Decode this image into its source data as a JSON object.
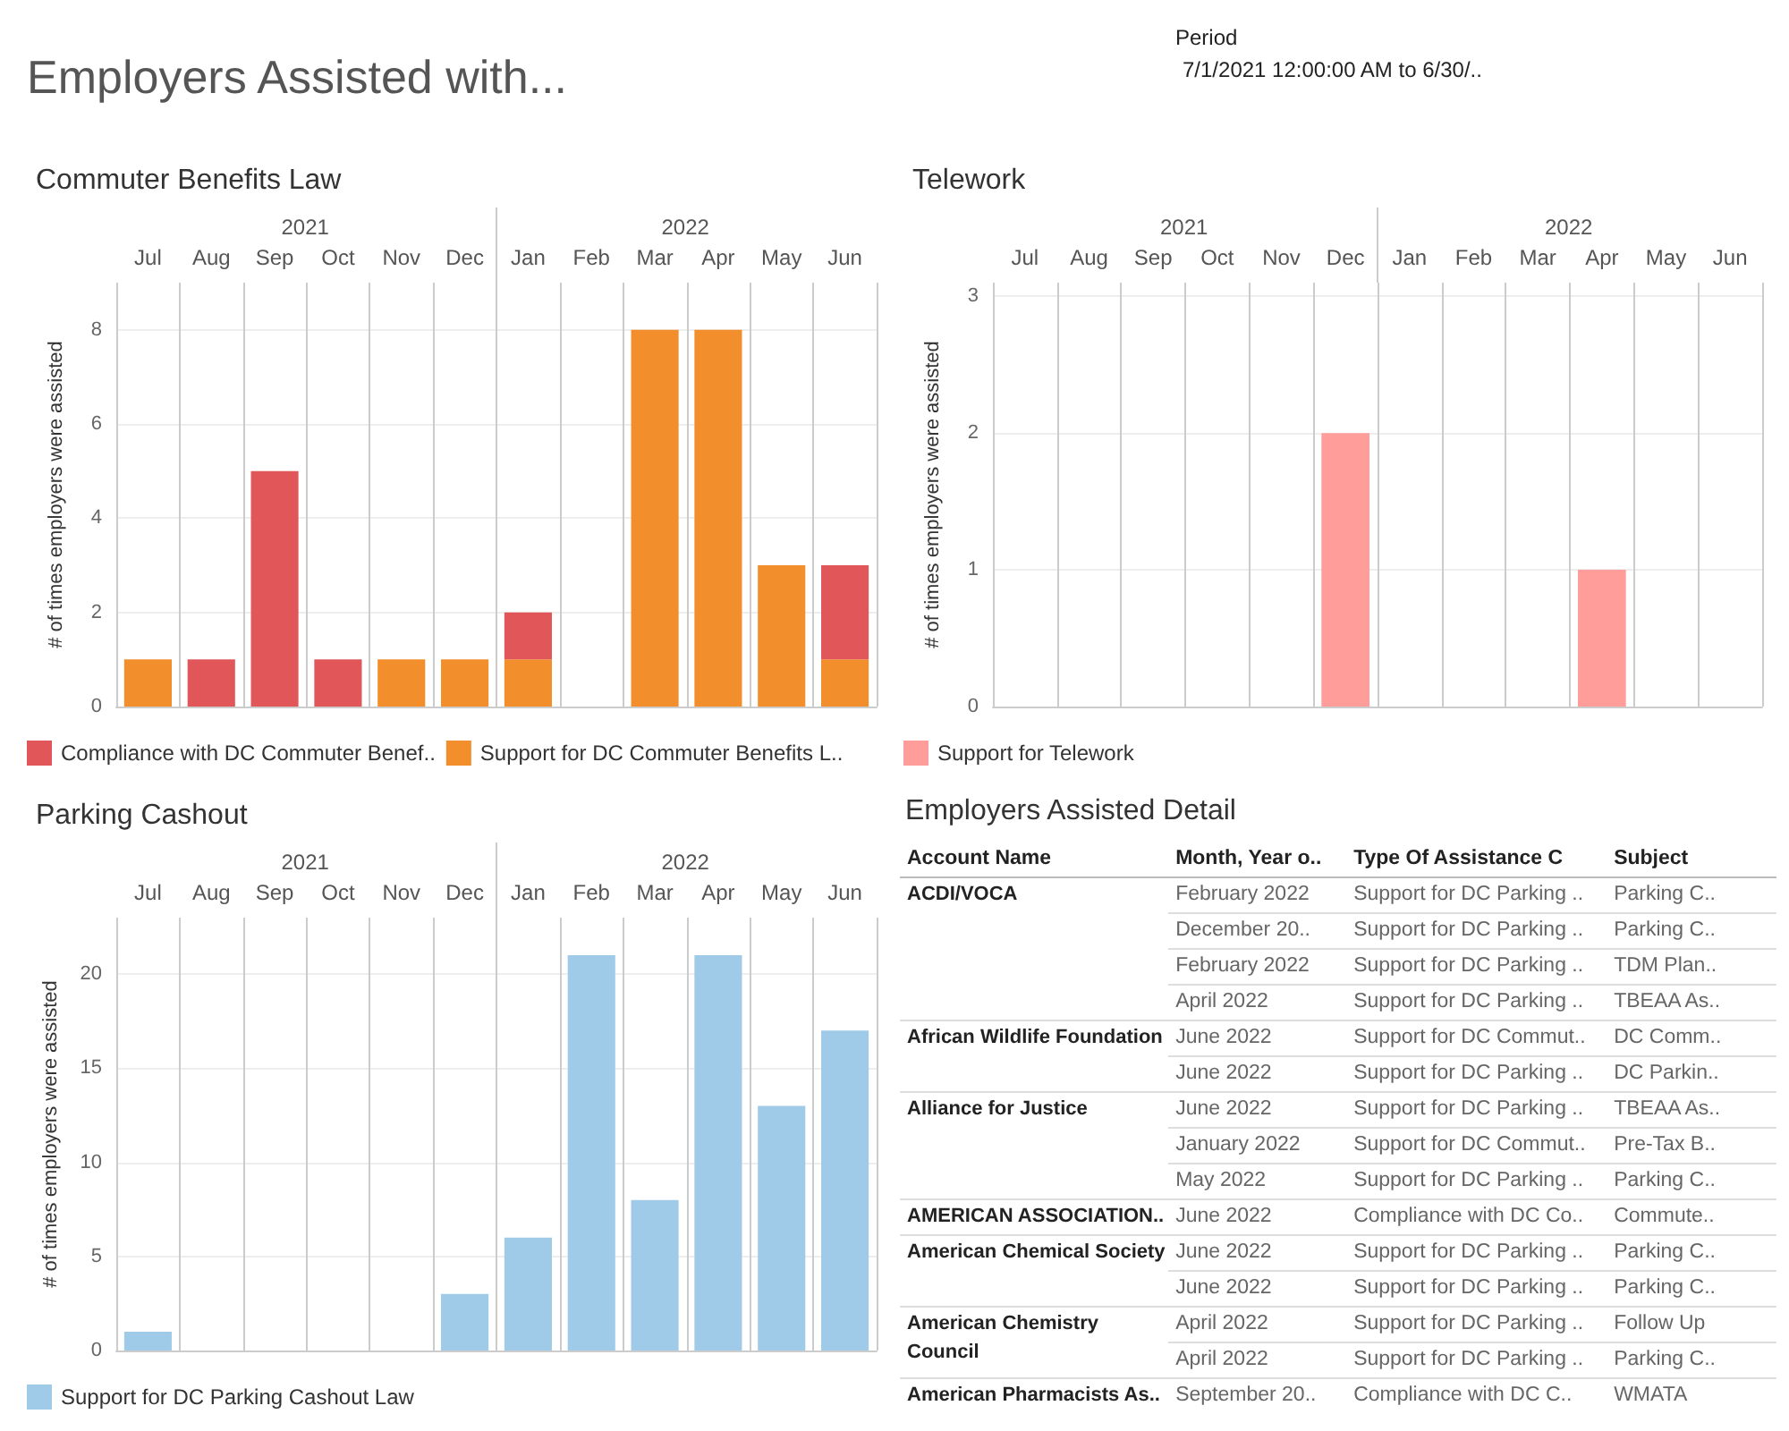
{
  "chart_data": [
    {
      "type": "other",
      "title": "Employers Assisted with...",
      "annotations": [
        "Period",
        "7/1/2021 12:00:00 AM to 6/30/.."
      ]
    },
    {
      "type": "bar",
      "title": "Commuter Benefits Law",
      "ylabel": "# of times employers were assisted",
      "categories": [
        "Jul",
        "Aug",
        "Sep",
        "Oct",
        "Nov",
        "Dec",
        "Jan",
        "Feb",
        "Mar",
        "Apr",
        "May",
        "Jun"
      ],
      "stacked": true,
      "series": [
        {
          "name": "Support for DC Commuter Benefits L..",
          "color": "#f28e2b",
          "values": [
            1,
            0,
            0,
            0,
            1,
            1,
            1,
            0,
            8,
            8,
            3,
            1
          ]
        },
        {
          "name": "Compliance with DC Commuter Benef..",
          "color": "#e15759",
          "values": [
            0,
            1,
            5,
            1,
            0,
            0,
            1,
            0,
            0,
            0,
            0,
            2
          ]
        }
      ],
      "ylim": [
        0,
        9
      ],
      "yticks": [
        0,
        2,
        4,
        6,
        8
      ],
      "grid": true,
      "legend": "bottom left",
      "annotations": [
        "2021",
        "2022"
      ]
    },
    {
      "type": "bar",
      "title": "Telework",
      "ylabel": "# of times employers were assisted",
      "categories": [
        "Jul",
        "Aug",
        "Sep",
        "Oct",
        "Nov",
        "Dec",
        "Jan",
        "Feb",
        "Mar",
        "Apr",
        "May",
        "Jun"
      ],
      "series": [
        {
          "name": "Support for Telework",
          "color": "#ff9d9a",
          "values": [
            0,
            0,
            0,
            0,
            0,
            2,
            0,
            0,
            0,
            1,
            0,
            0
          ]
        }
      ],
      "ylim": [
        0,
        3.1
      ],
      "yticks": [
        0,
        1,
        2,
        3
      ],
      "grid": true,
      "legend": "bottom left",
      "annotations": [
        "2021",
        "2022"
      ]
    },
    {
      "type": "bar",
      "title": "Parking Cashout",
      "ylabel": "# of times employers were assisted",
      "categories": [
        "Jul",
        "Aug",
        "Sep",
        "Oct",
        "Nov",
        "Dec",
        "Jan",
        "Feb",
        "Mar",
        "Apr",
        "May",
        "Jun"
      ],
      "series": [
        {
          "name": "Support for DC Parking Cashout Law",
          "color": "#a0cbe8",
          "values": [
            1,
            0,
            0,
            0,
            0,
            3,
            6,
            21,
            8,
            21,
            13,
            17
          ]
        }
      ],
      "ylim": [
        0,
        23
      ],
      "yticks": [
        0,
        5,
        10,
        15,
        20
      ],
      "grid": true,
      "legend": "bottom left",
      "annotations": [
        "2021",
        "2022"
      ]
    },
    {
      "type": "other",
      "title": "Employers Assisted Detail",
      "categories": [
        "Account Name",
        "Month, Year o..",
        "Type Of Assistance C",
        "Subject"
      ],
      "cell_labels": [
        [
          "ACDI/VOCA",
          "February 2022",
          "Support for DC Parking ..",
          "Parking C.."
        ],
        [
          null,
          "December 20..",
          "Support for DC Parking ..",
          "Parking C.."
        ],
        [
          null,
          "February 2022",
          "Support for DC Parking ..",
          "TDM Plan.."
        ],
        [
          null,
          "April 2022",
          "Support for DC Parking ..",
          "TBEAA As.."
        ],
        [
          "African Wildlife Foundation",
          "June 2022",
          "Support for DC Commut..",
          "DC Comm.."
        ],
        [
          null,
          "June 2022",
          "Support for DC Parking ..",
          "DC Parkin.."
        ],
        [
          "Alliance for Justice",
          "June 2022",
          "Support for DC Parking ..",
          "TBEAA As.."
        ],
        [
          null,
          "January 2022",
          "Support for DC Commut..",
          "Pre-Tax B.."
        ],
        [
          null,
          "May 2022",
          "Support for DC Parking ..",
          "Parking C.."
        ],
        [
          "AMERICAN ASSOCIATION..",
          "June 2022",
          "Compliance with DC Co..",
          "Commute.."
        ],
        [
          "American Chemical Society",
          "June 2022",
          "Support for DC Parking ..",
          "Parking C.."
        ],
        [
          null,
          "June 2022",
          "Support for DC Parking ..",
          "Parking C.."
        ],
        [
          "American Chemistry Council",
          "April 2022",
          "Support for DC Parking ..",
          "Follow Up"
        ],
        [
          null,
          "April 2022",
          "Support for DC Parking ..",
          "Parking C.."
        ],
        [
          "American Pharmacists As..",
          "September 20..",
          "Compliance with DC C..",
          "WMATA"
        ]
      ]
    }
  ]
}
